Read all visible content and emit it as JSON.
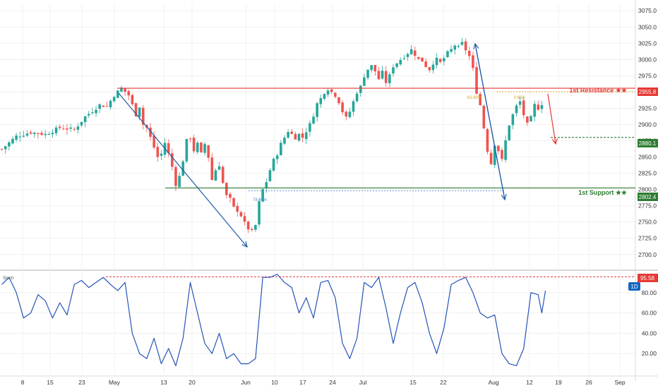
{
  "colors": {
    "up": "#26a69a",
    "down": "#ef5350",
    "resistance": "#e53935",
    "support": "#2e7d32",
    "arrow": "#1f5aa8",
    "target": "#2e7d32",
    "fib": "#d4a017",
    "stoch": "#2554b8",
    "badge": "#1565c0",
    "grid": "#f0f0f0"
  },
  "chart_data": [
    {
      "type": "candlestick",
      "title": "",
      "x_ticks": [
        "8",
        "15",
        "23",
        "May",
        "13",
        "20",
        "Jun",
        "10",
        "17",
        "24",
        "Jul",
        "15",
        "22",
        "Aug",
        "12",
        "19",
        "26",
        "Sep"
      ],
      "y_ticks": [
        2700,
        2725,
        2750,
        2775,
        2800,
        2825,
        2850,
        2875,
        2900,
        2925,
        2950,
        2975,
        3000,
        3025,
        3050,
        3075
      ],
      "y_tick_labels": [
        "2700.0",
        "2725.0",
        "2750.0",
        "2775.0",
        "2800.0",
        "2825.0",
        "2850.0",
        "2875.0",
        "2900.0",
        "2925.0",
        "2950.0",
        "2975.0",
        "3000.0",
        "3025.0",
        "3050.0",
        "3075.0"
      ],
      "ylim": [
        2690,
        3085
      ],
      "close_path": [
        [
          0,
          2862
        ],
        [
          4,
          2882
        ],
        [
          8,
          2888
        ],
        [
          12,
          2885
        ],
        [
          16,
          2895
        ],
        [
          20,
          2892
        ],
        [
          23,
          2912
        ],
        [
          27,
          2930
        ],
        [
          29,
          2928
        ],
        [
          31,
          2945
        ],
        [
          33,
          2956
        ],
        [
          35,
          2945
        ],
        [
          36,
          2930
        ],
        [
          37,
          2915
        ],
        [
          38,
          2928
        ],
        [
          39,
          2900
        ],
        [
          40,
          2895
        ],
        [
          41,
          2880
        ],
        [
          42,
          2865
        ],
        [
          43,
          2850
        ],
        [
          44,
          2855
        ],
        [
          45,
          2872
        ],
        [
          46,
          2855
        ],
        [
          47,
          2835
        ],
        [
          48,
          2808
        ],
        [
          49,
          2820
        ],
        [
          50,
          2845
        ],
        [
          51,
          2875
        ],
        [
          52,
          2880
        ],
        [
          53,
          2860
        ],
        [
          54,
          2870
        ],
        [
          55,
          2855
        ],
        [
          56,
          2870
        ],
        [
          57,
          2850
        ],
        [
          58,
          2815
        ],
        [
          59,
          2830
        ],
        [
          60,
          2838
        ],
        [
          61,
          2810
        ],
        [
          62,
          2790
        ],
        [
          63,
          2785
        ],
        [
          64,
          2772
        ],
        [
          65,
          2768
        ],
        [
          66,
          2760
        ],
        [
          67,
          2748
        ],
        [
          68,
          2740
        ],
        [
          69,
          2735
        ],
        [
          70,
          2745
        ],
        [
          71,
          2780
        ],
        [
          72,
          2800
        ],
        [
          73,
          2812
        ],
        [
          74,
          2830
        ],
        [
          75,
          2845
        ],
        [
          76,
          2855
        ],
        [
          77,
          2870
        ],
        [
          78,
          2880
        ],
        [
          79,
          2890
        ],
        [
          80,
          2885
        ],
        [
          81,
          2880
        ],
        [
          82,
          2885
        ],
        [
          83,
          2880
        ],
        [
          84,
          2890
        ],
        [
          85,
          2900
        ],
        [
          86,
          2915
        ],
        [
          87,
          2932
        ],
        [
          88,
          2940
        ],
        [
          89,
          2950
        ],
        [
          90,
          2955
        ],
        [
          91,
          2950
        ],
        [
          92,
          2945
        ],
        [
          93,
          2935
        ],
        [
          94,
          2920
        ],
        [
          95,
          2910
        ],
        [
          96,
          2920
        ],
        [
          97,
          2935
        ],
        [
          98,
          2950
        ],
        [
          99,
          2958
        ],
        [
          100,
          2975
        ],
        [
          101,
          2985
        ],
        [
          102,
          2990
        ],
        [
          103,
          2982
        ],
        [
          104,
          2970
        ],
        [
          105,
          2980
        ],
        [
          106,
          2965
        ],
        [
          107,
          2975
        ],
        [
          108,
          2990
        ],
        [
          109,
          2995
        ],
        [
          110,
          3000
        ],
        [
          111,
          3005
        ],
        [
          112,
          3010
        ],
        [
          113,
          3015
        ],
        [
          114,
          3008
        ],
        [
          115,
          3000
        ],
        [
          116,
          2998
        ],
        [
          117,
          2990
        ],
        [
          118,
          2985
        ],
        [
          119,
          2995
        ],
        [
          120,
          3000
        ],
        [
          121,
          2995
        ],
        [
          122,
          3002
        ],
        [
          123,
          3010
        ],
        [
          124,
          3015
        ],
        [
          125,
          3022
        ],
        [
          126,
          3018
        ],
        [
          127,
          3025
        ],
        [
          128,
          3015
        ],
        [
          129,
          3005
        ],
        [
          130,
          2985
        ],
        [
          131,
          2950
        ],
        [
          132,
          2930
        ],
        [
          133,
          2895
        ],
        [
          134,
          2860
        ],
        [
          135,
          2840
        ],
        [
          136,
          2870
        ],
        [
          137,
          2860
        ],
        [
          138,
          2845
        ],
        [
          139,
          2875
        ],
        [
          140,
          2900
        ],
        [
          141,
          2915
        ],
        [
          142,
          2928
        ],
        [
          143,
          2935
        ],
        [
          144,
          2915
        ],
        [
          145,
          2900
        ],
        [
          146,
          2910
        ],
        [
          147,
          2930
        ],
        [
          148,
          2925
        ],
        [
          149,
          2932
        ]
      ],
      "levels": [
        {
          "name": "1st Resistance ★★",
          "value": 2955.8,
          "tag": "2955.8",
          "type": "resistance"
        },
        {
          "name": "",
          "value": 2880.1,
          "tag": "2880.1",
          "type": "target"
        },
        {
          "name": "1st Support ★★",
          "value": 2802.4,
          "tag": "2802.4",
          "type": "support"
        }
      ],
      "fib_labels": {
        "left": "61.80%",
        "right": "0.618",
        "support": "78.60%"
      }
    },
    {
      "type": "line",
      "title": "Stoch",
      "badge": "1D",
      "y_ticks": [
        20,
        40,
        60,
        80
      ],
      "y_tick_labels": [
        "20.00",
        "40.00",
        "60.00",
        "80.00"
      ],
      "ylim": [
        0,
        100
      ],
      "level": {
        "value": 95.58,
        "tag": "95.58"
      },
      "series": [
        {
          "values": [
            [
              0,
              88
            ],
            [
              2,
              95
            ],
            [
              4,
              80
            ],
            [
              6,
              55
            ],
            [
              8,
              60
            ],
            [
              10,
              78
            ],
            [
              12,
              72
            ],
            [
              14,
              55
            ],
            [
              16,
              70
            ],
            [
              18,
              58
            ],
            [
              20,
              88
            ],
            [
              22,
              92
            ],
            [
              24,
              85
            ],
            [
              26,
              90
            ],
            [
              28,
              95
            ],
            [
              30,
              88
            ],
            [
              32,
              82
            ],
            [
              34,
              90
            ],
            [
              36,
              40
            ],
            [
              38,
              20
            ],
            [
              40,
              15
            ],
            [
              42,
              35
            ],
            [
              44,
              10
            ],
            [
              46,
              25
            ],
            [
              48,
              8
            ],
            [
              50,
              35
            ],
            [
              52,
              90
            ],
            [
              54,
              60
            ],
            [
              56,
              30
            ],
            [
              58,
              20
            ],
            [
              60,
              40
            ],
            [
              62,
              15
            ],
            [
              64,
              20
            ],
            [
              66,
              10
            ],
            [
              68,
              10
            ],
            [
              70,
              15
            ],
            [
              72,
              95
            ],
            [
              74,
              95
            ],
            [
              76,
              98
            ],
            [
              78,
              90
            ],
            [
              80,
              85
            ],
            [
              82,
              60
            ],
            [
              84,
              75
            ],
            [
              86,
              55
            ],
            [
              88,
              90
            ],
            [
              90,
              92
            ],
            [
              92,
              75
            ],
            [
              94,
              30
            ],
            [
              96,
              15
            ],
            [
              98,
              35
            ],
            [
              100,
              90
            ],
            [
              102,
              85
            ],
            [
              104,
              95
            ],
            [
              106,
              65
            ],
            [
              108,
              30
            ],
            [
              110,
              60
            ],
            [
              112,
              85
            ],
            [
              114,
              90
            ],
            [
              116,
              70
            ],
            [
              118,
              40
            ],
            [
              120,
              20
            ],
            [
              122,
              45
            ],
            [
              124,
              88
            ],
            [
              126,
              92
            ],
            [
              128,
              95
            ],
            [
              130,
              80
            ],
            [
              132,
              60
            ],
            [
              134,
              55
            ],
            [
              136,
              58
            ],
            [
              138,
              20
            ],
            [
              140,
              10
            ],
            [
              142,
              8
            ],
            [
              144,
              25
            ],
            [
              146,
              80
            ],
            [
              148,
              78
            ],
            [
              149,
              60
            ],
            [
              150,
              82
            ]
          ]
        }
      ]
    }
  ]
}
